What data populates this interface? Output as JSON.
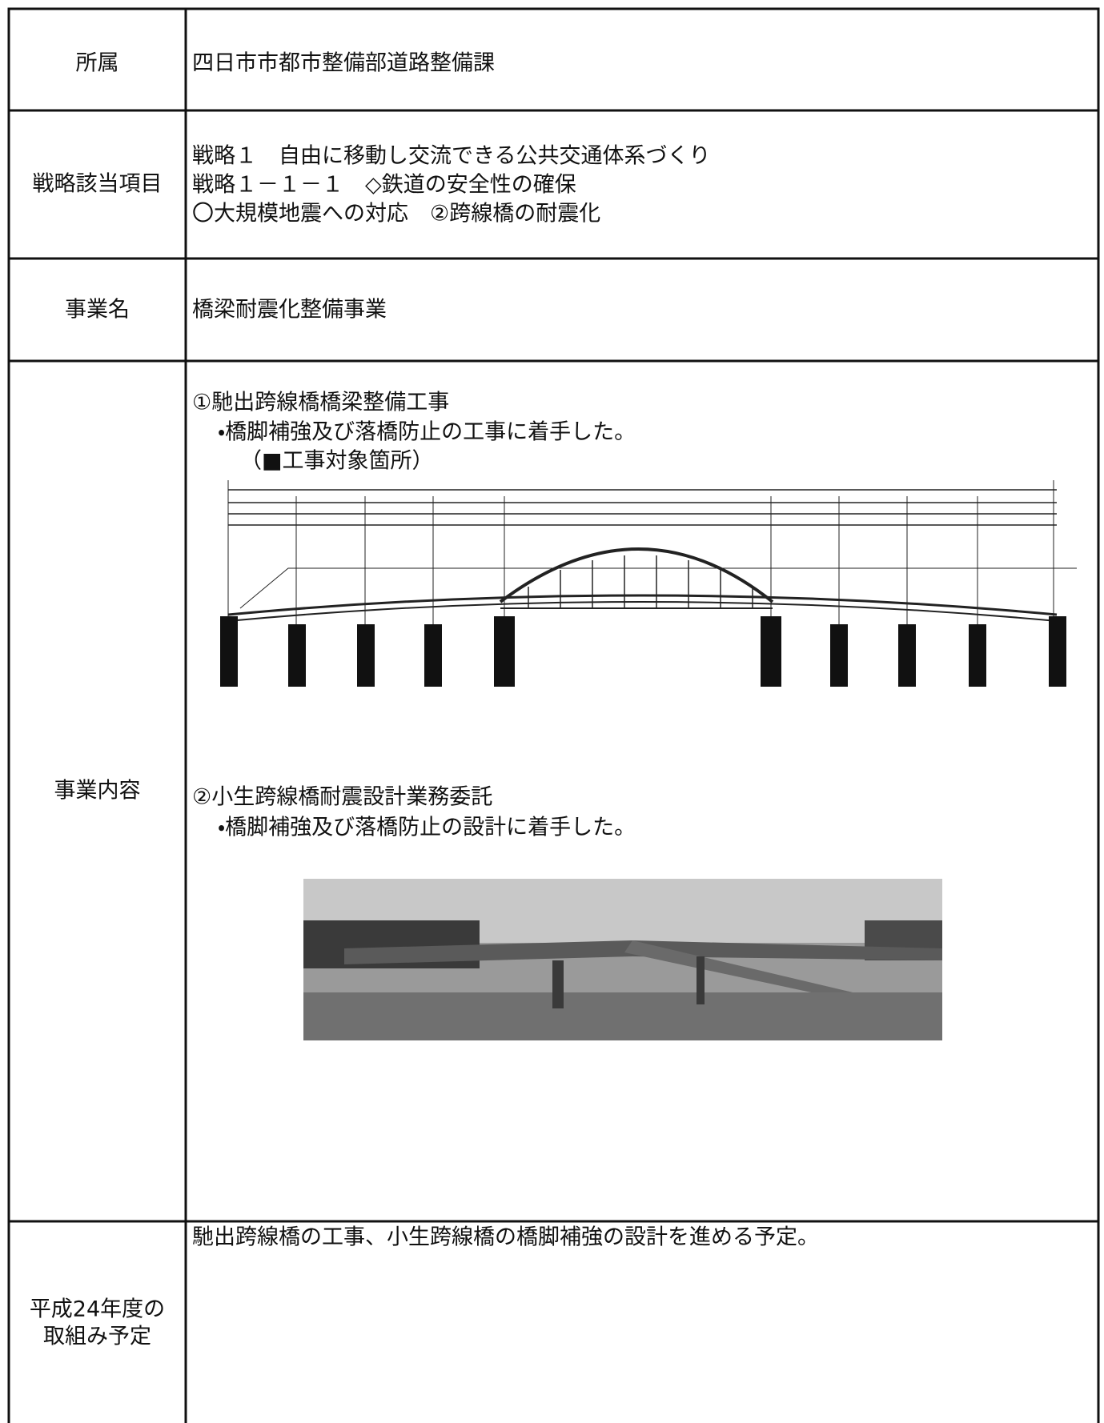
{
  "rows": [
    {
      "label": "所属",
      "content": [
        "四日市市都市整備部道路整備課"
      ]
    },
    {
      "label": "戦略該当項目",
      "content": [
        "戦略１　自由に移動し交流できる公共交通体系づくり",
        "戦略１－１－１　◇鉄道の安全性の確保",
        "〇大規模地震への対応　②跨線橋の耐震化"
      ]
    },
    {
      "label": "事業名",
      "content": [
        "橋梁耐震化整備事業"
      ]
    },
    {
      "label": "事業内容",
      "items": [
        {
          "title": "①馳出跨線橋橋梁整備工事",
          "note": "・橋脚補強及び落橋防止の工事に着手した。",
          "sub": "（■工事対象箇所）"
        },
        {
          "title": "②小生跨線橋耐震設計業務委託",
          "note": "・橋脚補強及び落橋防止の設計に着手した。"
        }
      ]
    },
    {
      "label": [
        "平成24年度の",
        "取組み予定"
      ],
      "content": [
        "馳出跨線橋の工事、小生跨線橋の橋脚補強の設計を進める予定。"
      ]
    }
  ]
}
